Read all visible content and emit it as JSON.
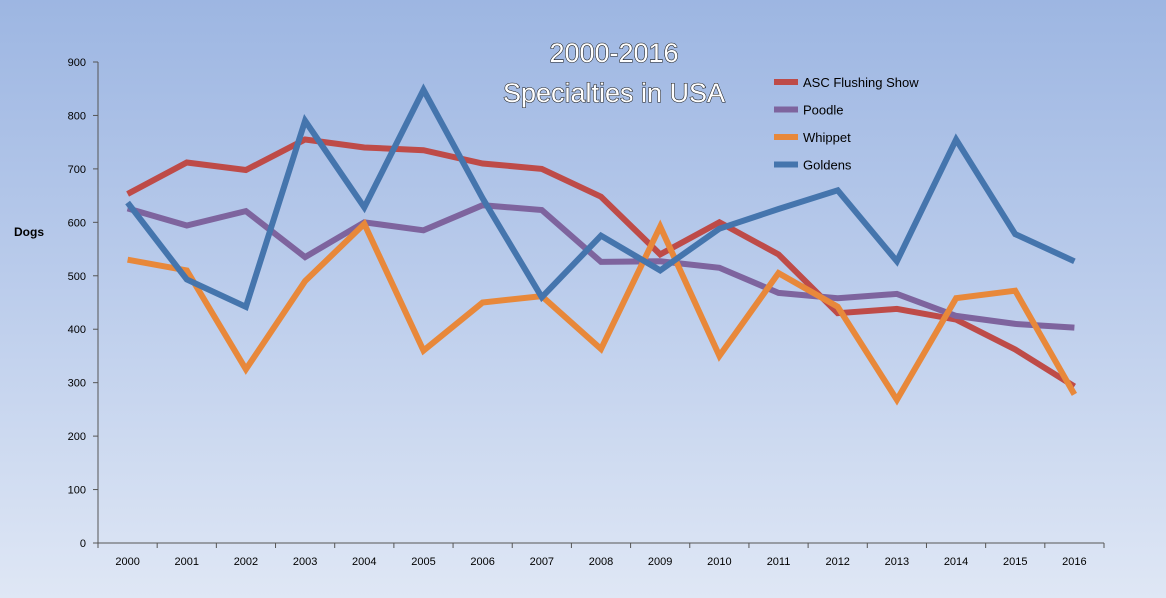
{
  "chart_data": {
    "type": "line",
    "title": [
      "2000-2016",
      "Specialties in USA"
    ],
    "ylabel": "Dogs",
    "xlabel": "",
    "ylim": [
      0,
      900
    ],
    "yticks": [
      0,
      100,
      200,
      300,
      400,
      500,
      600,
      700,
      800,
      900
    ],
    "categories": [
      "2000",
      "2001",
      "2002",
      "2003",
      "2004",
      "2005",
      "2006",
      "2007",
      "2008",
      "2009",
      "2010",
      "2011",
      "2012",
      "2013",
      "2014",
      "2015",
      "2016"
    ],
    "legend_position": "top-right",
    "series": [
      {
        "name": "ASC Flushing Show",
        "color": "#be4b48",
        "values": [
          653,
          712,
          698,
          755,
          740,
          735,
          710,
          700,
          648,
          540,
          600,
          540,
          430,
          438,
          418,
          362,
          293
        ]
      },
      {
        "name": "Poodle",
        "color": "#7e649e",
        "values": [
          626,
          594,
          621,
          535,
          600,
          585,
          632,
          623,
          526,
          527,
          515,
          468,
          458,
          466,
          425,
          410,
          403
        ]
      },
      {
        "name": "Whippet",
        "color": "#e8883a",
        "values": [
          530,
          510,
          325,
          490,
          597,
          360,
          450,
          462,
          363,
          592,
          350,
          505,
          442,
          268,
          458,
          472,
          278
        ]
      },
      {
        "name": "Goldens",
        "color": "#4575ad",
        "values": [
          637,
          493,
          442,
          790,
          628,
          848,
          645,
          460,
          575,
          510,
          588,
          625,
          660,
          527,
          755,
          578,
          527
        ]
      }
    ]
  }
}
